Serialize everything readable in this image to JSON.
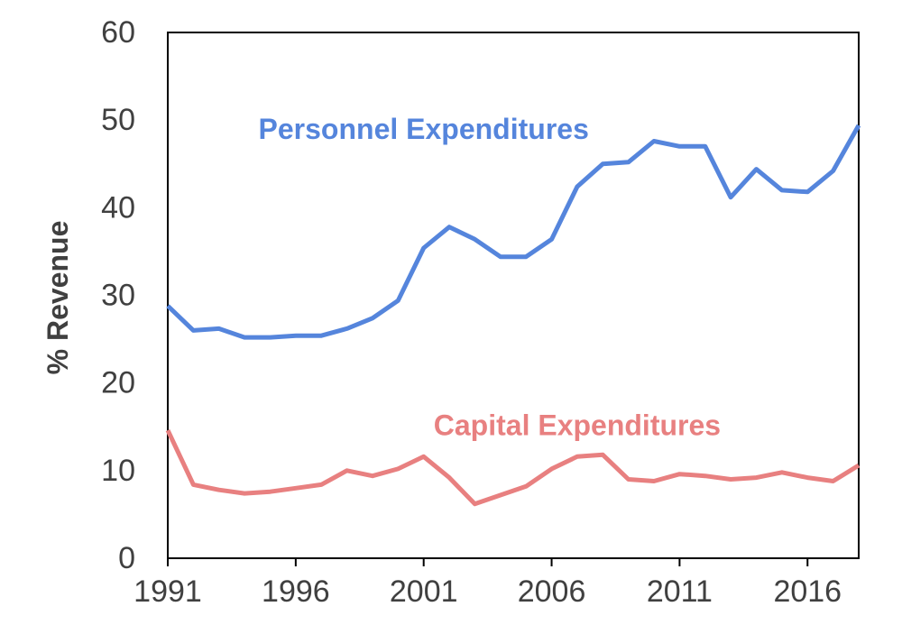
{
  "chart_data": {
    "type": "line",
    "title": "",
    "xlabel": "",
    "ylabel": "% Revenue",
    "xlim": [
      1991,
      2018
    ],
    "ylim": [
      0,
      60
    ],
    "x_ticks": [
      1991,
      1996,
      2001,
      2006,
      2011,
      2016
    ],
    "y_ticks": [
      0,
      10,
      20,
      30,
      40,
      50,
      60
    ],
    "grid": false,
    "legend": "none",
    "x": [
      1991,
      1992,
      1993,
      1994,
      1995,
      1996,
      1997,
      1998,
      1999,
      2000,
      2001,
      2002,
      2003,
      2004,
      2005,
      2006,
      2007,
      2008,
      2009,
      2010,
      2011,
      2012,
      2013,
      2014,
      2015,
      2016,
      2017,
      2018
    ],
    "series": [
      {
        "name": "Personnel Expenditures",
        "color": "#5585DC",
        "values": [
          28.8,
          26.0,
          26.2,
          25.2,
          25.2,
          25.4,
          25.4,
          26.2,
          27.4,
          29.4,
          35.4,
          37.8,
          36.4,
          34.4,
          34.4,
          36.4,
          42.4,
          45.0,
          45.2,
          47.6,
          47.0,
          47.0,
          41.2,
          44.4,
          42.0,
          41.8,
          44.2,
          49.4
        ]
      },
      {
        "name": "Capital Expenditures",
        "color": "#E88080",
        "values": [
          14.6,
          8.4,
          7.8,
          7.4,
          7.6,
          8.0,
          8.4,
          10.0,
          9.4,
          10.2,
          11.6,
          9.2,
          6.2,
          7.2,
          8.2,
          10.2,
          11.6,
          11.8,
          9.0,
          8.8,
          9.6,
          9.4,
          9.0,
          9.2,
          9.8,
          9.2,
          8.8,
          10.6
        ]
      }
    ],
    "annotations": [
      {
        "text": "Personnel Expenditures",
        "x": 2001,
        "y": 49,
        "anchor": "middle",
        "color": "#5585DC"
      },
      {
        "text": "Capital Expenditures",
        "x": 2007,
        "y": 15.2,
        "anchor": "middle",
        "color": "#E88080"
      }
    ]
  }
}
